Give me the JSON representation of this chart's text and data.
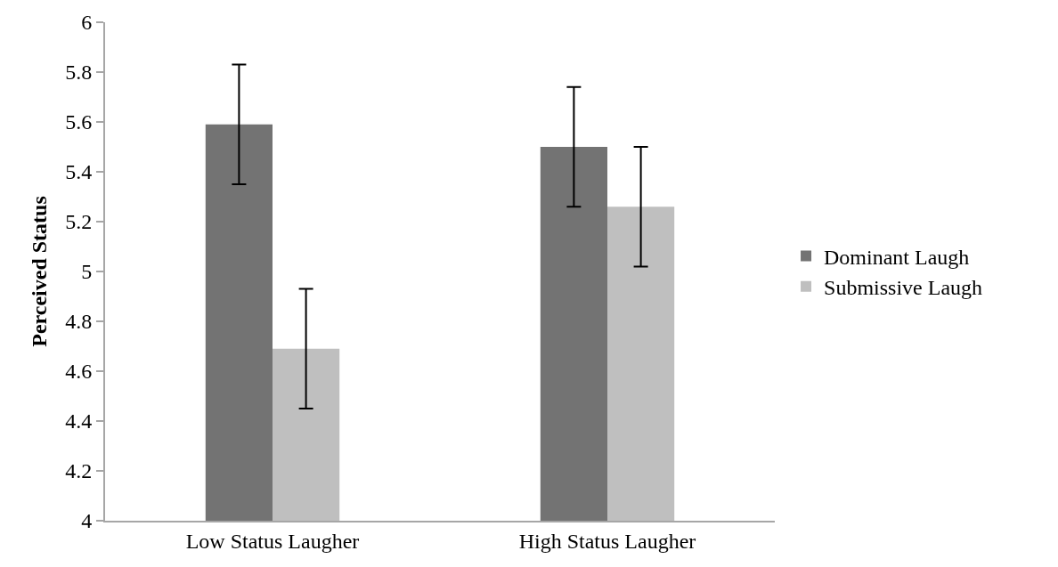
{
  "chart_data": {
    "type": "bar",
    "ylabel": "Perceived Status",
    "categories": [
      "Low Status Laugher",
      "High Status Laugher"
    ],
    "series": [
      {
        "name": "Dominant Laugh",
        "color": "#737373",
        "values": [
          5.59,
          5.5
        ],
        "errors": [
          0.24,
          0.24
        ]
      },
      {
        "name": "Submissive Laugh",
        "color": "#bfbfbf",
        "values": [
          4.69,
          5.26
        ],
        "errors": [
          0.24,
          0.24
        ]
      }
    ],
    "ylim": [
      4,
      6
    ],
    "yticks": [
      4,
      4.2,
      4.4,
      4.6,
      4.8,
      5,
      5.2,
      5.4,
      5.6,
      5.8,
      6
    ],
    "grid": false,
    "legend": "right"
  }
}
